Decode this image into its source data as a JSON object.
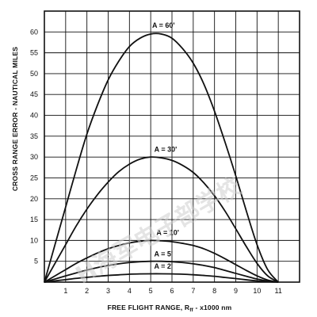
{
  "chart_data": {
    "type": "line",
    "title": "",
    "xlabel": "FREE FLIGHT RANGE, R",
    "xlabel_sub": "ff",
    "xlabel_suffix": " - x1000 nm",
    "ylabel": "CROSS RANGE ERROR - NAUTICAL MILES",
    "xlim": [
      0,
      12
    ],
    "ylim": [
      0,
      65
    ],
    "x_ticks": [
      1,
      2,
      3,
      4,
      5,
      6,
      7,
      8,
      9,
      10,
      11
    ],
    "y_ticks": [
      5,
      10,
      15,
      20,
      25,
      30,
      35,
      40,
      45,
      50,
      55,
      60
    ],
    "grid": true,
    "series": [
      {
        "name": "A = 60'",
        "x": [
          0,
          0.5,
          1,
          1.5,
          2,
          2.5,
          3,
          3.5,
          4,
          4.5,
          5,
          5.5,
          6,
          6.5,
          7,
          7.5,
          8,
          8.5,
          9,
          9.5,
          10,
          10.5,
          11
        ],
        "y": [
          0,
          9,
          18,
          27,
          35.5,
          42.5,
          48.5,
          53,
          56.5,
          58.5,
          59.5,
          59.5,
          58.5,
          56,
          52.5,
          47.5,
          41,
          33.5,
          25.5,
          17,
          9,
          3,
          0
        ]
      },
      {
        "name": "A = 30'",
        "x": [
          0,
          0.5,
          1,
          1.5,
          2,
          2.5,
          3,
          3.5,
          4,
          4.5,
          5,
          5.5,
          6,
          6.5,
          7,
          7.5,
          8,
          8.5,
          9,
          9.5,
          10,
          10.5,
          11
        ],
        "y": [
          0,
          4.5,
          9,
          13.5,
          17.5,
          21,
          24,
          26.5,
          28.3,
          29.5,
          30,
          29.8,
          29.2,
          28,
          26.3,
          23.8,
          20.7,
          17,
          12.8,
          8.5,
          4.5,
          1.5,
          0
        ]
      },
      {
        "name": "A = 10'",
        "x": [
          0,
          0.5,
          1,
          1.5,
          2,
          2.5,
          3,
          3.5,
          4,
          4.5,
          5,
          5.5,
          6,
          6.5,
          7,
          7.5,
          8,
          8.5,
          9,
          9.5,
          10,
          10.5,
          11
        ],
        "y": [
          0,
          1.5,
          3,
          4.5,
          5.8,
          7,
          8,
          8.8,
          9.4,
          9.8,
          10,
          9.9,
          9.7,
          9.3,
          8.8,
          8,
          6.9,
          5.6,
          4.2,
          2.8,
          1.5,
          0.5,
          0
        ]
      },
      {
        "name": "A = 5'",
        "x": [
          0,
          0.5,
          1,
          1.5,
          2,
          2.5,
          3,
          3.5,
          4,
          4.5,
          5,
          5.5,
          6,
          6.5,
          7,
          7.5,
          8,
          8.5,
          9,
          9.5,
          10,
          10.5,
          11
        ],
        "y": [
          0,
          0.75,
          1.5,
          2.2,
          2.9,
          3.5,
          4,
          4.4,
          4.7,
          4.9,
          5,
          5,
          4.9,
          4.7,
          4.4,
          4,
          3.5,
          2.8,
          2.1,
          1.4,
          0.75,
          0.25,
          0
        ]
      },
      {
        "name": "A = 2'",
        "x": [
          0,
          0.5,
          1,
          1.5,
          2,
          2.5,
          3,
          3.5,
          4,
          4.5,
          5,
          5.5,
          6,
          6.5,
          7,
          7.5,
          8,
          8.5,
          9,
          9.5,
          10,
          10.5,
          11
        ],
        "y": [
          0,
          0.3,
          0.6,
          0.9,
          1.15,
          1.4,
          1.6,
          1.75,
          1.9,
          1.97,
          2,
          2,
          1.97,
          1.9,
          1.77,
          1.6,
          1.4,
          1.12,
          0.85,
          0.56,
          0.3,
          0.1,
          0
        ]
      }
    ],
    "curve_labels": [
      {
        "text": "A = 60'",
        "x": 5.6,
        "y": 61
      },
      {
        "text": "A = 30'",
        "x": 5.7,
        "y": 31.3
      },
      {
        "text": "A = 10'",
        "x": 5.8,
        "y": 11.3
      },
      {
        "text": "A = 5'",
        "x": 5.6,
        "y": 6.2
      },
      {
        "text": "A = 2'",
        "x": 5.6,
        "y": 3.2
      }
    ]
  },
  "watermark": {
    "text": "H海军电子部学校"
  }
}
